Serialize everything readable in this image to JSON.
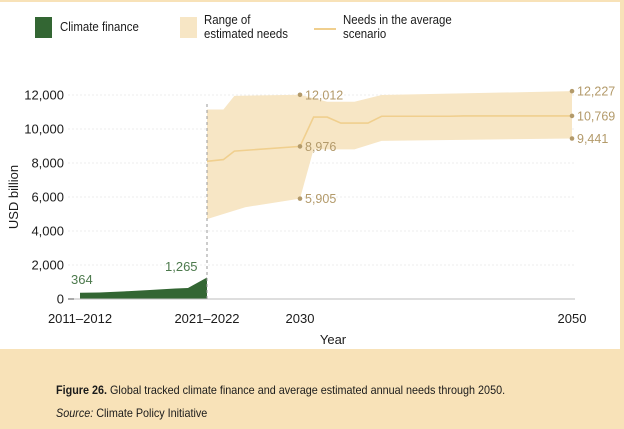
{
  "legend": {
    "climate_finance": "Climate finance",
    "range_line1": "Range of",
    "range_line2": "estimated needs",
    "needs_line1": "Needs in the average",
    "needs_line2": "scenario"
  },
  "colors": {
    "climate_finance": "#336633",
    "range": "#f7e6c5",
    "needs_line": "#f0cf8e",
    "needs_label": "#b39a6a",
    "finance_label": "#4d7a4d",
    "caption_bg": "#f8e2b8"
  },
  "caption": {
    "figure_label": "Figure 26.",
    "text": " Global tracked climate finance and average estimated annual needs through 2050.",
    "source_label": "Source:",
    "source_text": " Climate Policy Initiative"
  },
  "chart_data": {
    "type": "area",
    "title": "",
    "xlabel": "Year",
    "ylabel": "USD billion",
    "ylim": [
      0,
      12000
    ],
    "yticks": [
      0,
      2000,
      4000,
      6000,
      8000,
      10000,
      12000
    ],
    "ytick_labels": [
      "0",
      "2,000",
      "4,000",
      "6,000",
      "8,000",
      "10,000",
      "12,000"
    ],
    "xticks": [
      {
        "label": "2011–2012",
        "x": 2011.5
      },
      {
        "label": "2021–2022",
        "x": 2021.5
      },
      {
        "label": "2030",
        "x": 2030
      },
      {
        "label": "2050",
        "x": 2050
      }
    ],
    "grid": true,
    "legend_position": "top",
    "series": [
      {
        "name": "Climate finance",
        "type": "area",
        "points": [
          [
            2011.5,
            364
          ],
          [
            2013,
            380
          ],
          [
            2015,
            450
          ],
          [
            2017,
            530
          ],
          [
            2019,
            620
          ],
          [
            2020,
            650
          ],
          [
            2021.5,
            1265
          ]
        ],
        "labels": [
          {
            "x": 2011.5,
            "value": "364"
          },
          {
            "x": 2021.5,
            "value": "1,265"
          }
        ]
      },
      {
        "name": "Range of estimated needs",
        "type": "band",
        "upper": [
          [
            2021.5,
            11150
          ],
          [
            2023,
            11150
          ],
          [
            2024,
            11950
          ],
          [
            2030,
            12012
          ],
          [
            2032,
            11600
          ],
          [
            2034,
            11600
          ],
          [
            2036,
            12000
          ],
          [
            2050,
            12227
          ]
        ],
        "lower": [
          [
            2021.5,
            4700
          ],
          [
            2023,
            5000
          ],
          [
            2025,
            5400
          ],
          [
            2030,
            5905
          ],
          [
            2031,
            8800
          ],
          [
            2034,
            8800
          ],
          [
            2036,
            9300
          ],
          [
            2050,
            9441
          ]
        ],
        "labels": [
          {
            "x": 2030,
            "value": "12,012",
            "y": 12012
          },
          {
            "x": 2030,
            "value": "5,905",
            "y": 5905
          },
          {
            "x": 2050,
            "value": "12,227",
            "y": 12227
          },
          {
            "x": 2050,
            "value": "9,441",
            "y": 9441
          }
        ]
      },
      {
        "name": "Needs in the average scenario",
        "type": "line",
        "points": [
          [
            2021.5,
            8100
          ],
          [
            2023,
            8200
          ],
          [
            2024,
            8700
          ],
          [
            2030,
            8976
          ],
          [
            2031,
            10700
          ],
          [
            2032,
            10700
          ],
          [
            2033,
            10350
          ],
          [
            2035,
            10350
          ],
          [
            2036,
            10750
          ],
          [
            2041,
            10750
          ],
          [
            2042,
            10769
          ],
          [
            2050,
            10769
          ]
        ],
        "labels": [
          {
            "x": 2030,
            "value": "8,976",
            "y": 8976
          },
          {
            "x": 2050,
            "value": "10,769",
            "y": 10769
          }
        ]
      }
    ],
    "annotations": [
      {
        "type": "vline",
        "x": 2021.5,
        "style": "dashed"
      }
    ]
  }
}
